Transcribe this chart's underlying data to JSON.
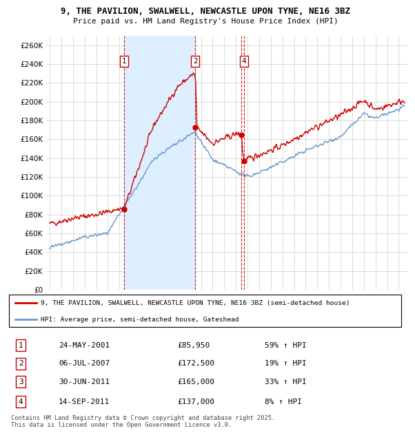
{
  "title": "9, THE PAVILION, SWALWELL, NEWCASTLE UPON TYNE, NE16 3BZ",
  "subtitle": "Price paid vs. HM Land Registry's House Price Index (HPI)",
  "ylim": [
    0,
    270000
  ],
  "yticks": [
    0,
    20000,
    40000,
    60000,
    80000,
    100000,
    120000,
    140000,
    160000,
    180000,
    200000,
    220000,
    240000,
    260000
  ],
  "background_color": "#ffffff",
  "plot_bg_color": "#ffffff",
  "grid_color": "#cccccc",
  "red_color": "#cc0000",
  "blue_color": "#6699cc",
  "shade_color": "#ddeeff",
  "transactions": [
    {
      "num": 1,
      "date": "24-MAY-2001",
      "price": 85950,
      "year": 2001.39,
      "pct": "59%",
      "dir": "↑"
    },
    {
      "num": 2,
      "date": "06-JUL-2007",
      "price": 172500,
      "year": 2007.51,
      "pct": "19%",
      "dir": "↑"
    },
    {
      "num": 3,
      "date": "30-JUN-2011",
      "price": 165000,
      "year": 2011.49,
      "pct": "33%",
      "dir": "↑"
    },
    {
      "num": 4,
      "date": "14-SEP-2011",
      "price": 137000,
      "year": 2011.71,
      "pct": "8%",
      "dir": "↑"
    }
  ],
  "legend_line1": "9, THE PAVILION, SWALWELL, NEWCASTLE UPON TYNE, NE16 3BZ (semi-detached house)",
  "legend_line2": "HPI: Average price, semi-detached house, Gateshead",
  "footer": "Contains HM Land Registry data © Crown copyright and database right 2025.\nThis data is licensed under the Open Government Licence v3.0.",
  "label_show_on_chart": [
    1,
    2,
    4
  ],
  "shade_between": [
    2001.39,
    2007.51
  ]
}
